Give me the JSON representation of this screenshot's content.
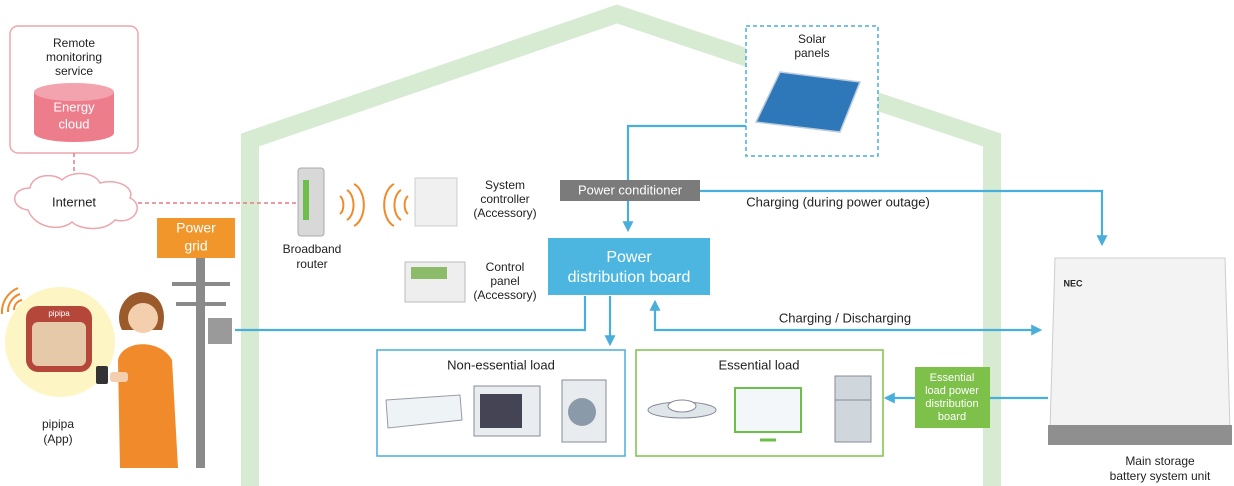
{
  "nodes": {
    "remote_monitoring": {
      "label": [
        "Remote",
        "monitoring",
        "service"
      ]
    },
    "energy_cloud": {
      "label": [
        "Energy",
        "cloud"
      ]
    },
    "internet": {
      "label": "Internet"
    },
    "power_grid": {
      "label": [
        "Power",
        "grid"
      ]
    },
    "broadband_router": {
      "label": [
        "Broadband",
        "router"
      ]
    },
    "system_controller": {
      "label": [
        "System",
        "controller",
        "(Accessory)"
      ]
    },
    "control_panel": {
      "label": [
        "Control",
        "panel",
        "(Accessory)"
      ]
    },
    "solar_panels": {
      "label": [
        "Solar",
        "panels"
      ]
    },
    "power_conditioner": {
      "label": "Power conditioner"
    },
    "power_distribution_board": {
      "label": [
        "Power",
        "distribution board"
      ]
    },
    "non_essential_load": {
      "label": "Non-essential load"
    },
    "essential_load": {
      "label": "Essential load"
    },
    "essential_load_board": {
      "label": [
        "Essential",
        "load power",
        "distribution",
        "board"
      ]
    },
    "battery": {
      "brand": "NEC",
      "label": [
        "Main storage",
        "battery system unit"
      ]
    },
    "app": {
      "icon": "pipipa",
      "label": [
        "pipipa",
        "(App)"
      ]
    }
  },
  "edges": {
    "charging_outage": "Charging (during power outage)",
    "charging_discharging": "Charging / Discharging"
  }
}
